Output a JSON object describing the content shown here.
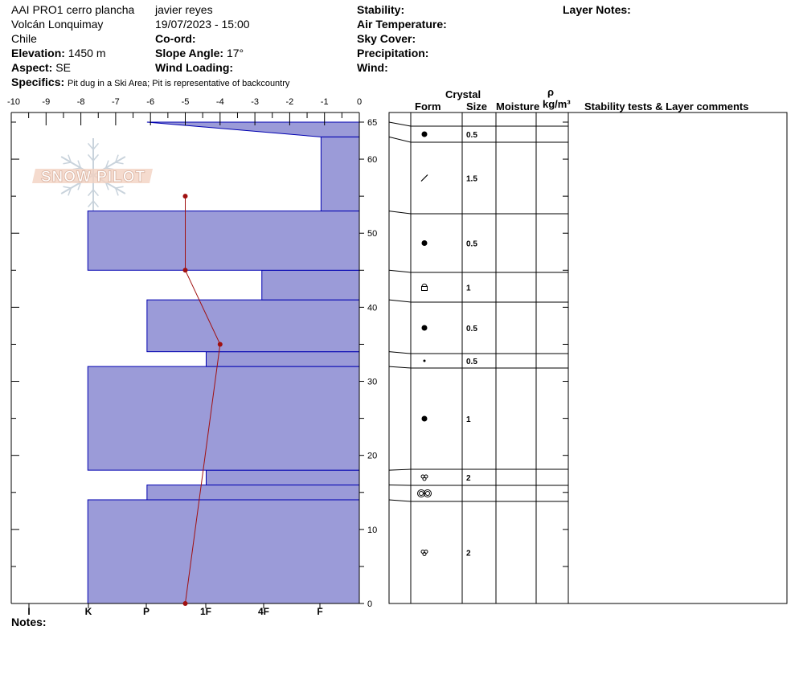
{
  "header": {
    "pit_name": "AAI PRO1 cerro plancha",
    "observer": "javier  reyes",
    "location": "Volcán Lonquimay",
    "datetime": "19/07/2023 - 15:00",
    "country": "Chile",
    "coord_label": "Co-ord:",
    "elevation_label": "Elevation:",
    "elevation_value": "1450 m",
    "slope_label": "Slope Angle:",
    "slope_value": "17°",
    "aspect_label": "Aspect:",
    "aspect_value": "SE",
    "wind_loading_label": "Wind Loading:",
    "specifics_label": "Specifics:",
    "specifics_value": "Pit dug in a Ski Area; Pit is representative of backcountry",
    "stability_label": "Stability:",
    "air_temp_label": "Air Temperature:",
    "sky_cover_label": "Sky Cover:",
    "precipitation_label": "Precipitation:",
    "wind_label": "Wind:",
    "layer_notes_label": "Layer Notes:",
    "notes_label": "Notes:"
  },
  "logo_text": "SNOW PILOT",
  "table_headers": {
    "crystal": "Crystal",
    "form": "Form",
    "size": "Size",
    "moisture": "Moisture",
    "rho": "ρ",
    "density_unit": "kg/m³",
    "comments": "Stability tests & Layer comments"
  },
  "chart_data": {
    "type": "snow_profile",
    "temperature_axis": {
      "ticks": [
        "-10",
        "-9",
        "-8",
        "-7",
        "-6",
        "-5",
        "-4",
        "-3",
        "-2",
        "-1",
        "0"
      ],
      "range": [
        -10,
        0
      ]
    },
    "height_axis": {
      "range": [
        0,
        65
      ],
      "tick_labels": [
        0,
        10,
        20,
        30,
        40,
        50,
        60,
        65
      ]
    },
    "hardness_axis": {
      "ticks": [
        "I",
        "K",
        "P",
        "1F",
        "4F",
        "F"
      ]
    },
    "hardness_layers": [
      {
        "bottom": 0,
        "top": 14,
        "temp_equiv": -7.8
      },
      {
        "bottom": 14,
        "top": 16,
        "temp_equiv": -6.1
      },
      {
        "bottom": 16,
        "top": 18,
        "temp_equiv": -4.4
      },
      {
        "bottom": 18,
        "top": 32,
        "temp_equiv": -7.8
      },
      {
        "bottom": 32,
        "top": 34,
        "temp_equiv": -4.4
      },
      {
        "bottom": 34,
        "top": 41,
        "temp_equiv": -6.1
      },
      {
        "bottom": 41,
        "top": 45,
        "temp_equiv": -2.8
      },
      {
        "bottom": 45,
        "top": 53,
        "temp_equiv": -7.8
      },
      {
        "bottom": 53,
        "top": 63,
        "temp_equiv": -1.1
      },
      {
        "bottom": 63,
        "top": 65,
        "temp_equiv_bottom": -1.1,
        "temp_equiv_top": -6.1
      }
    ],
    "temperature_profile": [
      {
        "height": 0,
        "temp": -5.0
      },
      {
        "height": 35,
        "temp": -4.0
      },
      {
        "height": 45,
        "temp": -5.0
      },
      {
        "height": 55,
        "temp": -5.0
      }
    ],
    "layers": [
      {
        "bottom": 63,
        "top": 65,
        "form": "round",
        "size": "0.5"
      },
      {
        "bottom": 53,
        "top": 63,
        "form": "slash",
        "size": "1.5"
      },
      {
        "bottom": 45,
        "top": 53,
        "form": "round",
        "size": "0.5"
      },
      {
        "bottom": 41,
        "top": 45,
        "form": "facet-round",
        "size": "1"
      },
      {
        "bottom": 34,
        "top": 41,
        "form": "round",
        "size": "0.5"
      },
      {
        "bottom": 32,
        "top": 34,
        "form": "dot",
        "size": "0.5"
      },
      {
        "bottom": 18,
        "top": 32,
        "form": "round",
        "size": "1"
      },
      {
        "bottom": 16,
        "top": 18,
        "form": "melt-cluster",
        "size": "2"
      },
      {
        "bottom": 14,
        "top": 16,
        "form": "melt-freeze",
        "size": ""
      },
      {
        "bottom": 0,
        "top": 14,
        "form": "melt-cluster",
        "size": "2"
      }
    ]
  },
  "colors": {
    "hardness_fill": "#9b9bd8",
    "hardness_stroke": "#0000b0",
    "temp_line": "#a01010"
  }
}
